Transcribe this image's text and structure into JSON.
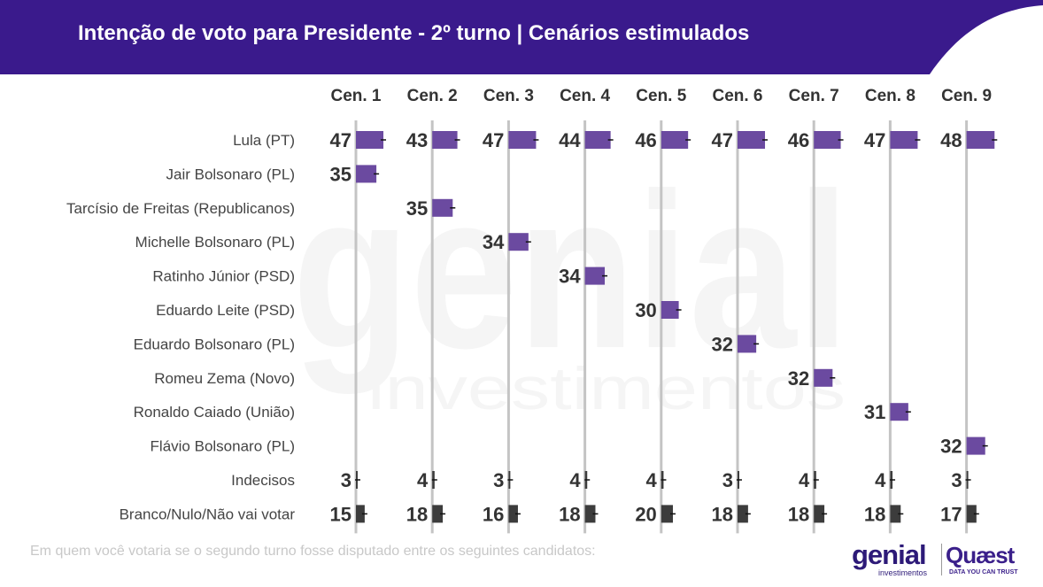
{
  "title": "Intenção de voto para Presidente - 2º turno | Cenários estimulados",
  "footnote": "Em quem você votaria se o segundo turno fosse disputado entre os seguintes candidatos:",
  "watermark": {
    "line1": "genial",
    "line2": "investimentos"
  },
  "logos": {
    "genial": "genial",
    "genial_sub": "investimentos",
    "quaest": "Quæst",
    "quaest_sub": "DATA YOU CAN TRUST"
  },
  "colors": {
    "header": "#3a1a8c",
    "candidate_bar": "#6b4aa0",
    "other_bar": "#3c3c3c",
    "divider": "#c4c4c4"
  },
  "chart_data": {
    "type": "bar",
    "title": "Intenção de voto para Presidente - 2º turno | Cenários estimulados",
    "scenarios": [
      "Cen. 1",
      "Cen. 2",
      "Cen. 3",
      "Cen. 4",
      "Cen. 5",
      "Cen. 6",
      "Cen. 7",
      "Cen. 8",
      "Cen. 9"
    ],
    "rows": [
      {
        "label": "Lula (PT)",
        "kind": "candidate",
        "values": [
          47,
          43,
          47,
          44,
          46,
          47,
          46,
          47,
          48
        ]
      },
      {
        "label": "Jair Bolsonaro (PL)",
        "kind": "candidate",
        "values": [
          35,
          null,
          null,
          null,
          null,
          null,
          null,
          null,
          null
        ]
      },
      {
        "label": "Tarcísio de Freitas (Republicanos)",
        "kind": "candidate",
        "values": [
          null,
          35,
          null,
          null,
          null,
          null,
          null,
          null,
          null
        ]
      },
      {
        "label": "Michelle Bolsonaro (PL)",
        "kind": "candidate",
        "values": [
          null,
          null,
          34,
          null,
          null,
          null,
          null,
          null,
          null
        ]
      },
      {
        "label": "Ratinho Júnior (PSD)",
        "kind": "candidate",
        "values": [
          null,
          null,
          null,
          34,
          null,
          null,
          null,
          null,
          null
        ]
      },
      {
        "label": "Eduardo Leite (PSD)",
        "kind": "candidate",
        "values": [
          null,
          null,
          null,
          null,
          30,
          null,
          null,
          null,
          null
        ]
      },
      {
        "label": "Eduardo Bolsonaro (PL)",
        "kind": "candidate",
        "values": [
          null,
          null,
          null,
          null,
          null,
          32,
          null,
          null,
          null
        ]
      },
      {
        "label": "Romeu Zema (Novo)",
        "kind": "candidate",
        "values": [
          null,
          null,
          null,
          null,
          null,
          null,
          32,
          null,
          null
        ]
      },
      {
        "label": "Ronaldo Caiado (União)",
        "kind": "candidate",
        "values": [
          null,
          null,
          null,
          null,
          null,
          null,
          null,
          31,
          null
        ]
      },
      {
        "label": "Flávio Bolsonaro (PL)",
        "kind": "candidate",
        "values": [
          null,
          null,
          null,
          null,
          null,
          null,
          null,
          null,
          32
        ]
      },
      {
        "label": "Indecisos",
        "kind": "other",
        "values": [
          3,
          4,
          3,
          4,
          4,
          3,
          4,
          4,
          3
        ]
      },
      {
        "label": "Branco/Nulo/Não vai votar",
        "kind": "other",
        "values": [
          15,
          18,
          16,
          18,
          20,
          18,
          18,
          18,
          17
        ]
      }
    ],
    "unit": "%"
  }
}
